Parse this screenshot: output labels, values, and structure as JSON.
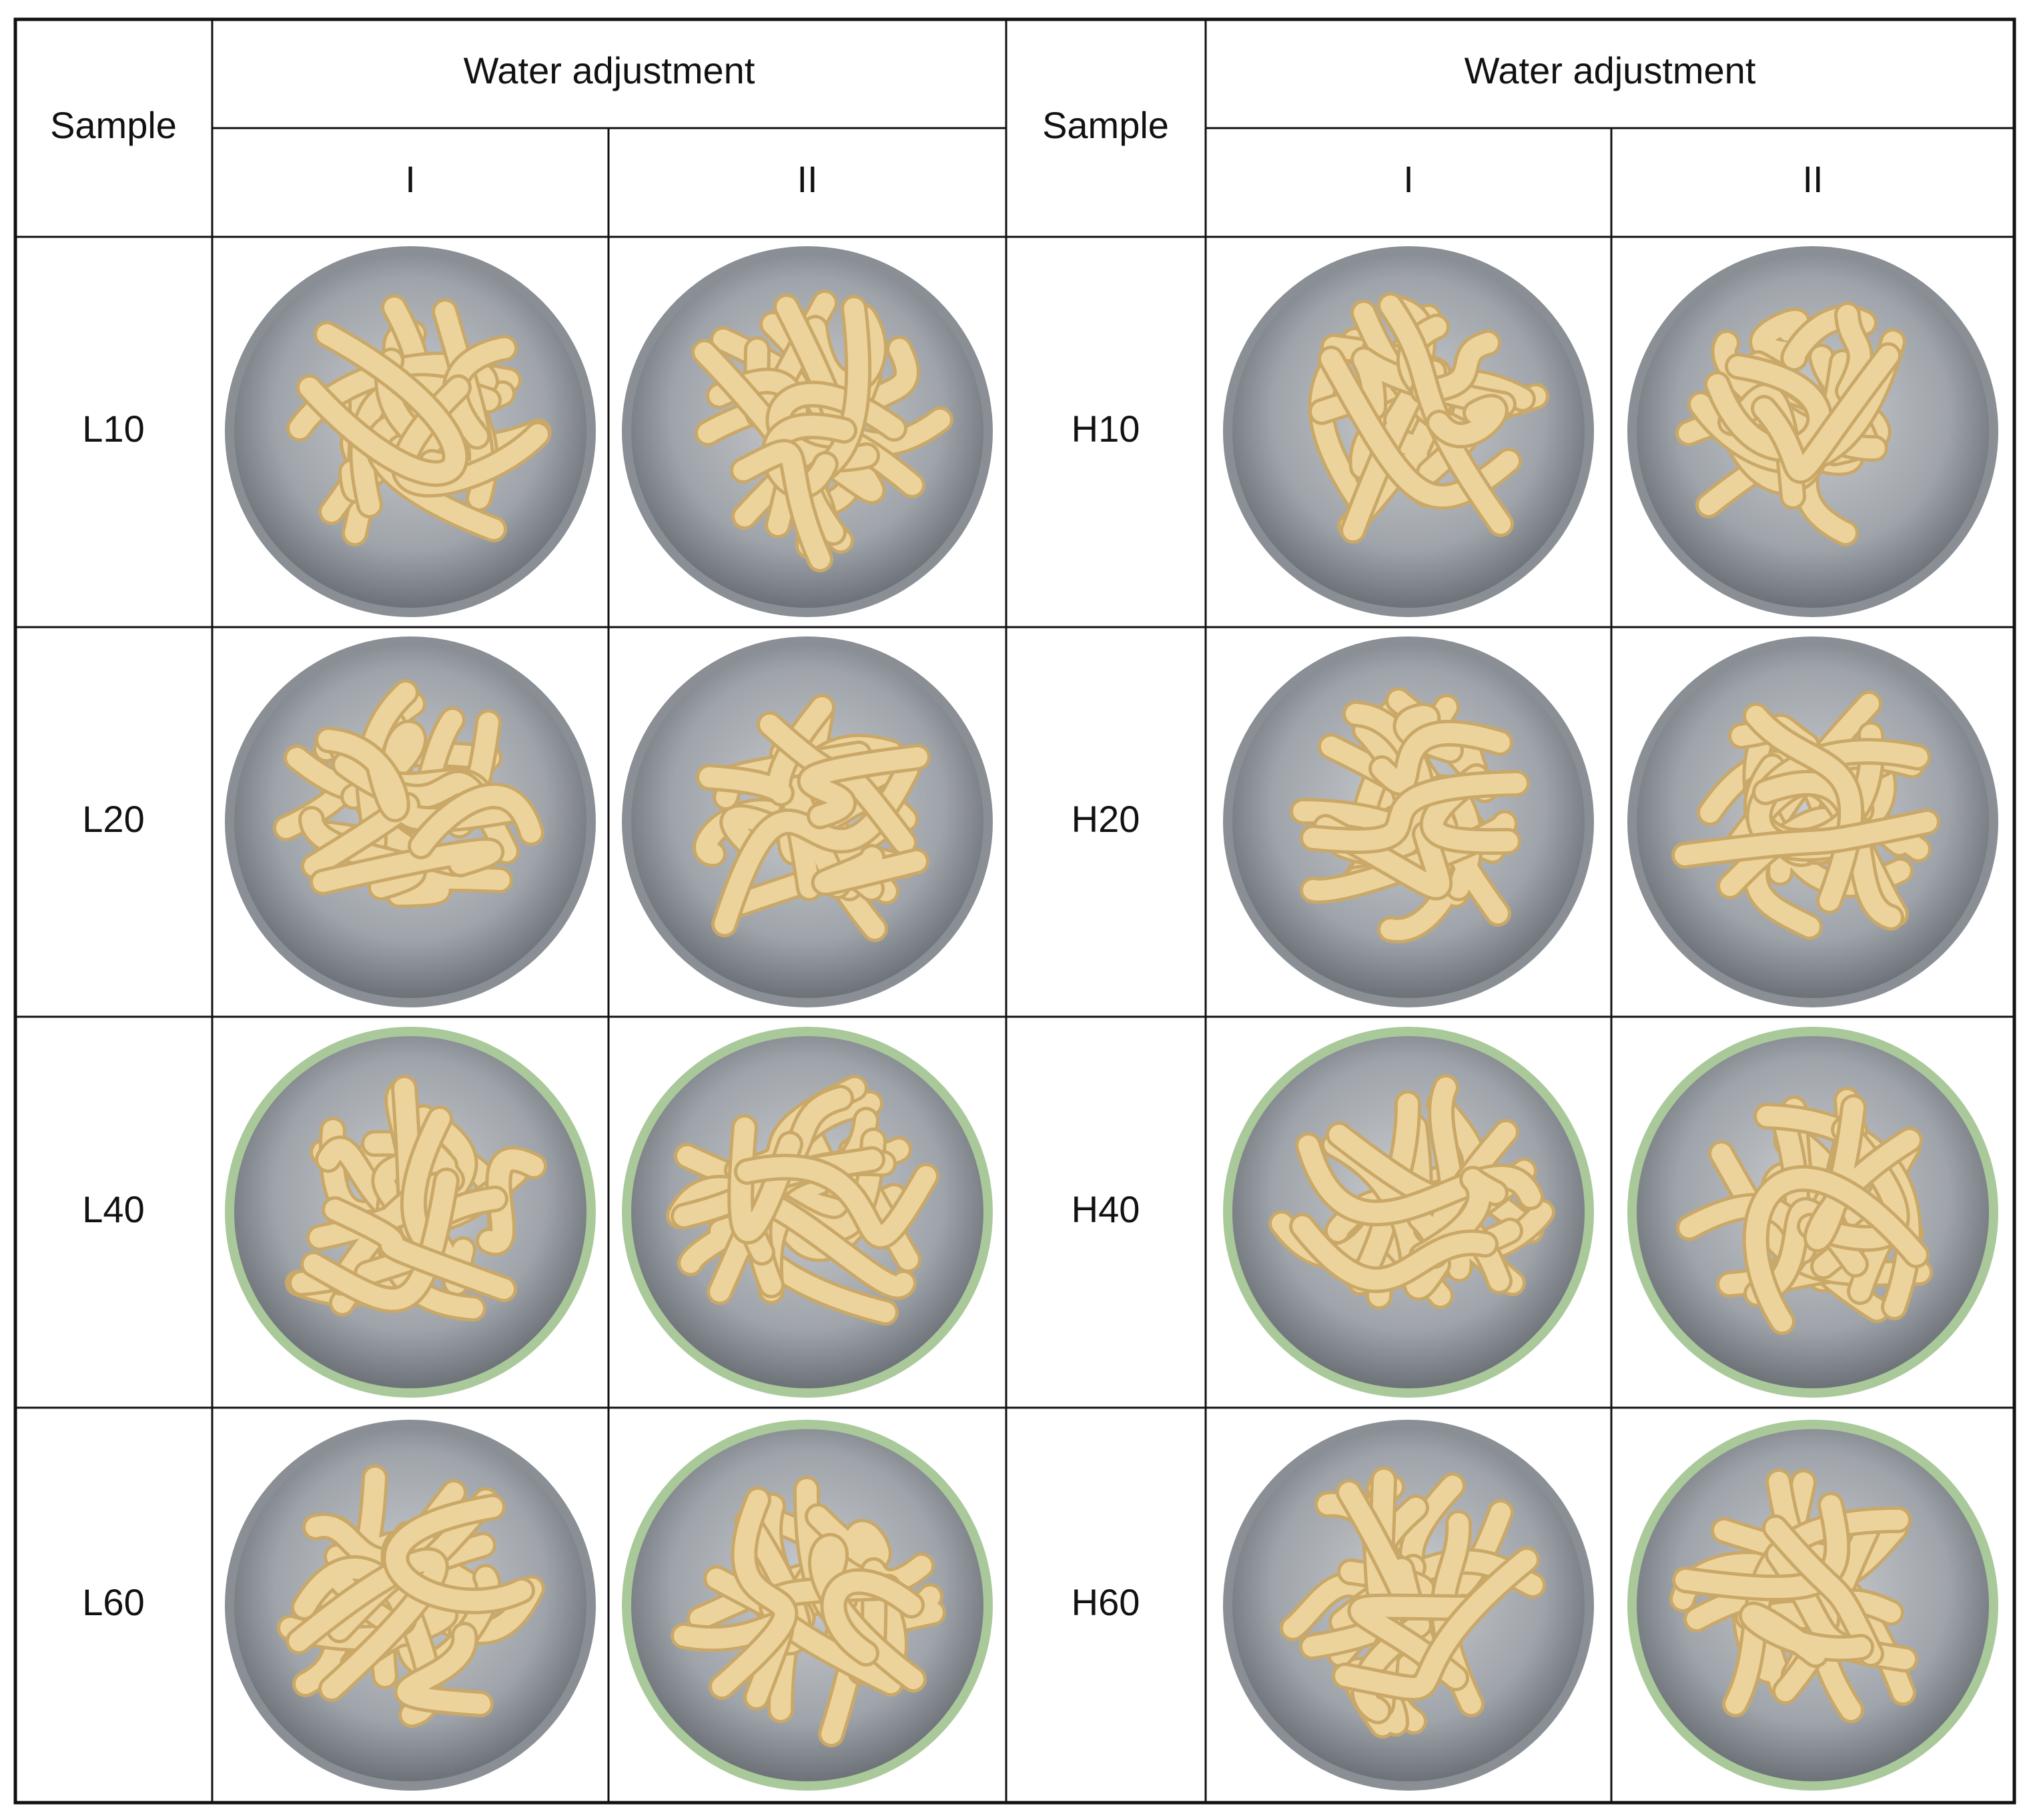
{
  "table": {
    "header": {
      "left": {
        "sample": "Sample",
        "group": "Water adjustment",
        "columns": [
          "I",
          "II"
        ]
      },
      "right": {
        "sample": "Sample",
        "group": "Water adjustment",
        "columns": [
          "I",
          "II"
        ]
      }
    },
    "rows": [
      [
        "L10",
        "H10"
      ],
      [
        "L20",
        "H20"
      ],
      [
        "L40",
        "H40"
      ],
      [
        "L60",
        "H60"
      ]
    ]
  }
}
